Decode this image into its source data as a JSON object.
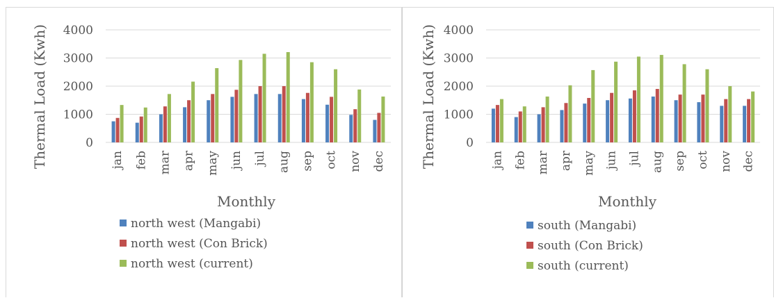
{
  "colors": {
    "series1": "#4f81bd",
    "series2": "#c0504d",
    "series3": "#9bbb59",
    "grid": "#d9d9d9",
    "text": "#595959"
  },
  "chart_data": [
    {
      "type": "bar",
      "title": "",
      "xlabel": "Monthly",
      "ylabel": "Thermal Load (Kwh)",
      "ylim": [
        0,
        4000
      ],
      "yticks": [
        "0",
        "1000",
        "2000",
        "3000",
        "4000"
      ],
      "grid": true,
      "legend_position": "bottom",
      "categories": [
        "jan",
        "feb",
        "mar",
        "apr",
        "may",
        "jun",
        "jul",
        "aug",
        "sep",
        "oct",
        "nov",
        "dec"
      ],
      "series": [
        {
          "name": "north west (Mangabi)",
          "values": [
            750,
            700,
            1000,
            1250,
            1500,
            1620,
            1720,
            1720,
            1540,
            1340,
            980,
            800
          ]
        },
        {
          "name": "north west (Con Brick)",
          "values": [
            870,
            920,
            1280,
            1500,
            1720,
            1870,
            2000,
            2000,
            1760,
            1620,
            1180,
            1050
          ]
        },
        {
          "name": "north west (current)",
          "values": [
            1330,
            1240,
            1720,
            2160,
            2640,
            2930,
            3150,
            3210,
            2850,
            2600,
            1880,
            1630
          ]
        }
      ]
    },
    {
      "type": "bar",
      "title": "",
      "xlabel": "Monthly",
      "ylabel": "Thermal Load (Kwh)",
      "ylim": [
        0,
        4000
      ],
      "yticks": [
        "0",
        "1000",
        "2000",
        "3000",
        "4000"
      ],
      "grid": true,
      "legend_position": "bottom",
      "categories": [
        "jan",
        "feb",
        "mar",
        "apr",
        "may",
        "jun",
        "jul",
        "aug",
        "sep",
        "oct",
        "nov",
        "dec"
      ],
      "series": [
        {
          "name": "south (Mangabi)",
          "values": [
            1200,
            900,
            1000,
            1150,
            1380,
            1500,
            1560,
            1630,
            1500,
            1430,
            1300,
            1300
          ]
        },
        {
          "name": "south (Con Brick)",
          "values": [
            1330,
            1100,
            1250,
            1400,
            1580,
            1760,
            1850,
            1900,
            1700,
            1700,
            1540,
            1540
          ]
        },
        {
          "name": "south (current)",
          "values": [
            1540,
            1280,
            1630,
            2030,
            2570,
            2870,
            3050,
            3110,
            2780,
            2600,
            2000,
            1810
          ]
        }
      ]
    }
  ]
}
